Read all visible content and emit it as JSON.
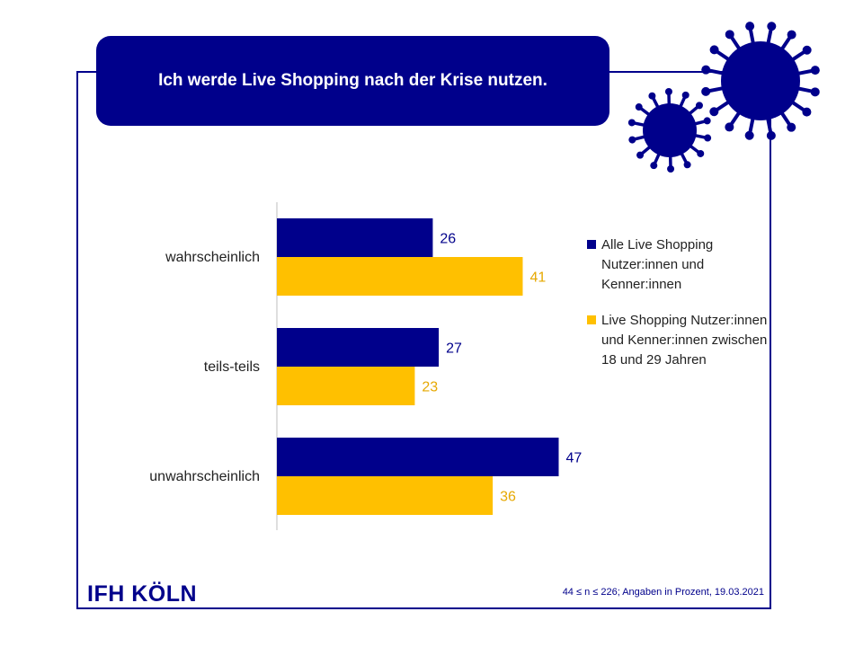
{
  "title": "Ich werde Live Shopping nach der Krise nutzen.",
  "logo": "IFH KÖLN",
  "footnote": "44 ≤ n ≤ 226; Angaben in Prozent, 19.03.2021",
  "icons": [
    "virus-icon-large",
    "virus-icon-small"
  ],
  "colors": {
    "navy": "#00008b",
    "gold": "#ffc000"
  },
  "chart_data": {
    "type": "bar",
    "orientation": "horizontal",
    "categories": [
      "wahrscheinlich",
      "teils-teils",
      "unwahrscheinlich"
    ],
    "series": [
      {
        "name": "Alle Live Shopping Nutzer:innen und Kenner:innen",
        "values": [
          26,
          27,
          47
        ],
        "color": "#00008b"
      },
      {
        "name": "Live Shopping Nutzer:innen und Kenner:innen zwischen 18 und 29 Jahren",
        "values": [
          41,
          23,
          36
        ],
        "color": "#ffc000"
      }
    ],
    "xlim": [
      0,
      50
    ],
    "grid": false,
    "data_labels": true,
    "legend_position": "right"
  }
}
